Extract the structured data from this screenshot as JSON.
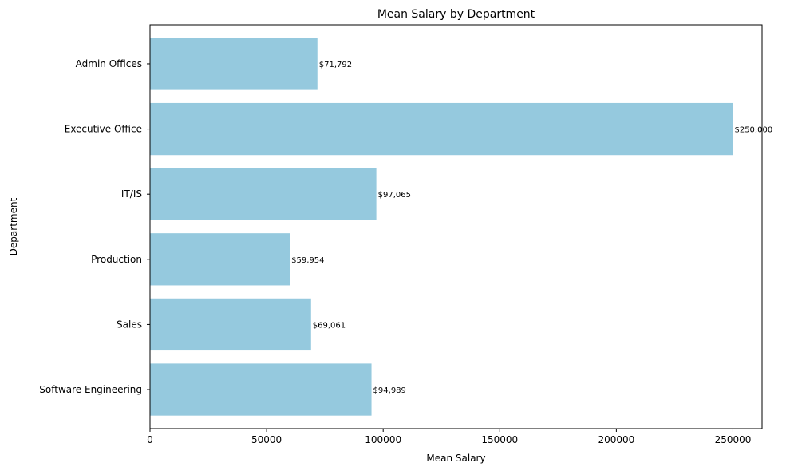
{
  "chart_data": {
    "type": "bar",
    "orientation": "horizontal",
    "title": "Mean Salary by Department",
    "xlabel": "Mean Salary",
    "ylabel": "Department",
    "categories": [
      "Admin Offices",
      "Executive Office",
      "IT/IS",
      "Production",
      "Sales",
      "Software Engineering"
    ],
    "values": [
      71792,
      250000,
      97065,
      59954,
      69061,
      94989
    ],
    "data_labels": [
      "$71,792",
      "$250,000",
      "$97,065",
      "$59,954",
      "$69,061",
      "$94,989"
    ],
    "xlim": [
      0,
      262500
    ],
    "xticks": [
      0,
      50000,
      100000,
      150000,
      200000,
      250000
    ],
    "xtick_labels": [
      "0",
      "50000",
      "100000",
      "150000",
      "200000",
      "250000"
    ],
    "grid": false,
    "bar_color": "#95c9de"
  }
}
